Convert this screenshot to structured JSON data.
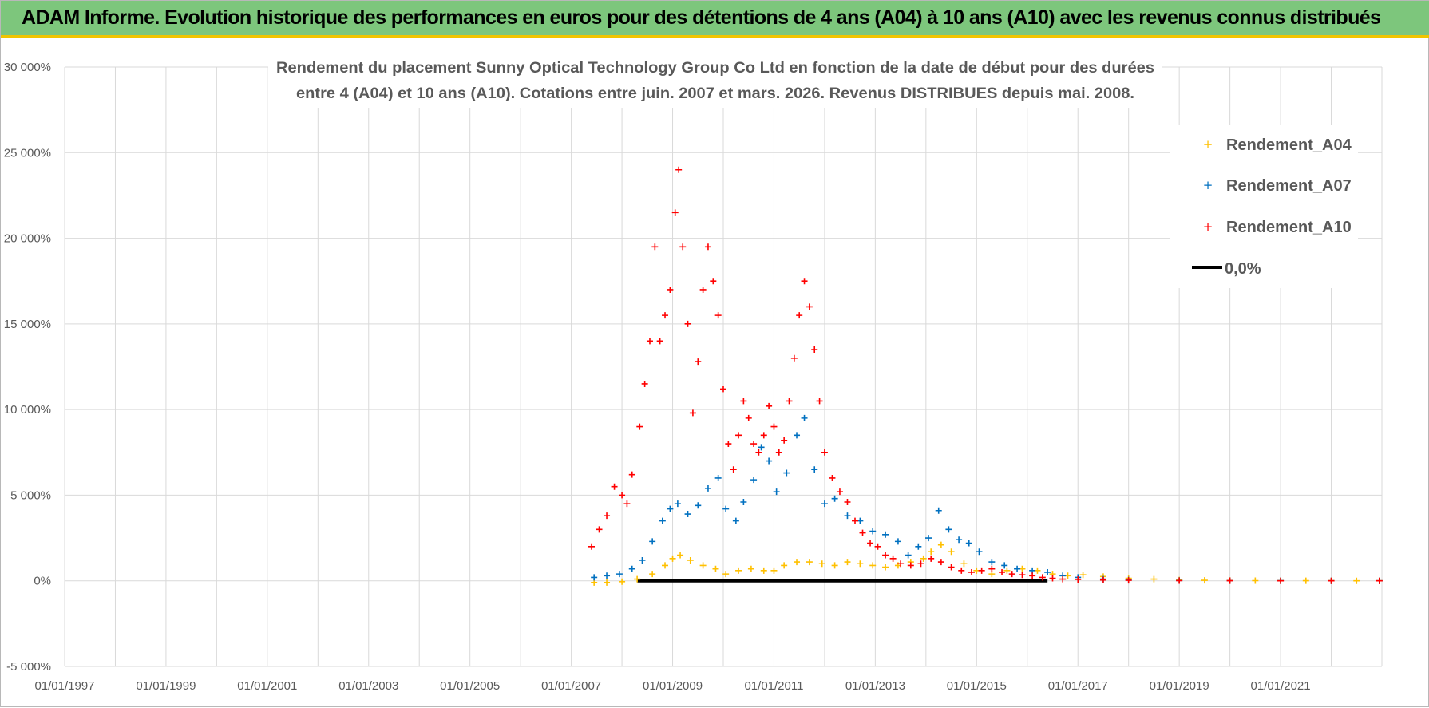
{
  "banner": {
    "title": "ADAM Informe. Evolution historique des performances en euros pour des détentions de 4 ans (A04) à 10 ans (A10) avec les revenus connus distribués"
  },
  "colors": {
    "banner_bg": "#7dc67c",
    "banner_accent": "#f0c400",
    "A04": "#ffc000",
    "A07": "#0070c0",
    "A10": "#ff0000",
    "zero": "#000000",
    "grid": "#d9d9d9"
  },
  "chart_data": {
    "type": "scatter",
    "title_lines": [
      "Rendement du placement Sunny Optical Technology Group Co Ltd en fonction de la date de début pour des durées",
      "entre 4 (A04) et 10 ans (A10).  Cotations entre juin. 2007 et mars. 2026.  Revenus DISTRIBUES depuis mai. 2008."
    ],
    "x_range": [
      1997.0,
      2023.0
    ],
    "x_ticks": [
      {
        "value": 1997,
        "label": "01/01/1997"
      },
      {
        "value": 1999,
        "label": "01/01/1999"
      },
      {
        "value": 2001,
        "label": "01/01/2001"
      },
      {
        "value": 2003,
        "label": "01/01/2003"
      },
      {
        "value": 2005,
        "label": "01/01/2005"
      },
      {
        "value": 2007,
        "label": "01/01/2007"
      },
      {
        "value": 2009,
        "label": "01/01/2009"
      },
      {
        "value": 2011,
        "label": "01/01/2011"
      },
      {
        "value": 2013,
        "label": "01/01/2013"
      },
      {
        "value": 2015,
        "label": "01/01/2015"
      },
      {
        "value": 2017,
        "label": "01/01/2017"
      },
      {
        "value": 2019,
        "label": "01/01/2019"
      },
      {
        "value": 2021,
        "label": "01/01/2021"
      }
    ],
    "y_range": [
      -5000,
      30000
    ],
    "y_ticks": [
      {
        "value": 30000,
        "label": "30 000%"
      },
      {
        "value": 25000,
        "label": "25 000%"
      },
      {
        "value": 20000,
        "label": "20 000%"
      },
      {
        "value": 15000,
        "label": "15 000%"
      },
      {
        "value": 10000,
        "label": "10 000%"
      },
      {
        "value": 5000,
        "label": "5 000%"
      },
      {
        "value": 0,
        "label": "0%"
      },
      {
        "value": -5000,
        "label": "-5 000%"
      }
    ],
    "legend": [
      "Rendement_A04",
      "Rendement_A07",
      "Rendement_A10",
      "0,0%"
    ],
    "series": [
      {
        "name": "Rendement_A04",
        "marker": "+",
        "x": [
          2007.45,
          2007.7,
          2008.0,
          2008.3,
          2008.6,
          2008.85,
          2009.0,
          2009.15,
          2009.35,
          2009.6,
          2009.85,
          2010.05,
          2010.3,
          2010.55,
          2010.8,
          2011.0,
          2011.2,
          2011.45,
          2011.7,
          2011.95,
          2012.2,
          2012.45,
          2012.7,
          2012.95,
          2013.2,
          2013.45,
          2013.7,
          2013.95,
          2014.1,
          2014.3,
          2014.5,
          2014.75,
          2015.0,
          2015.3,
          2015.6,
          2015.9,
          2016.2,
          2016.5,
          2016.8,
          2017.1,
          2017.5,
          2018.0,
          2018.5,
          2019.0,
          2019.5,
          2020.0,
          2020.5,
          2021.0,
          2021.5,
          2022.0,
          2022.5,
          2022.95
        ],
        "y": [
          -100,
          -100,
          -50,
          100,
          400,
          900,
          1300,
          1500,
          1200,
          900,
          700,
          400,
          600,
          700,
          600,
          600,
          900,
          1100,
          1100,
          1000,
          900,
          1100,
          1000,
          900,
          800,
          900,
          1100,
          1300,
          1700,
          2100,
          1700,
          1000,
          600,
          400,
          600,
          700,
          600,
          400,
          300,
          350,
          250,
          150,
          100,
          50,
          30,
          20,
          10,
          10,
          5,
          5,
          0,
          0
        ]
      },
      {
        "name": "Rendement_A07",
        "marker": "+",
        "x": [
          2007.45,
          2007.7,
          2007.95,
          2008.2,
          2008.4,
          2008.6,
          2008.8,
          2008.95,
          2009.1,
          2009.3,
          2009.5,
          2009.7,
          2009.9,
          2010.05,
          2010.25,
          2010.4,
          2010.6,
          2010.75,
          2010.9,
          2011.05,
          2011.25,
          2011.45,
          2011.6,
          2011.8,
          2012.0,
          2012.2,
          2012.45,
          2012.7,
          2012.95,
          2013.2,
          2013.45,
          2013.65,
          2013.85,
          2014.05,
          2014.25,
          2014.45,
          2014.65,
          2014.85,
          2015.05,
          2015.3,
          2015.55,
          2015.8,
          2016.1,
          2016.4,
          2016.7,
          2017.0,
          2017.5,
          2018.0,
          2019.0,
          2020.0,
          2021.0,
          2022.0,
          2022.95
        ],
        "y": [
          200,
          300,
          400,
          700,
          1200,
          2300,
          3500,
          4200,
          4500,
          3900,
          4400,
          5400,
          6000,
          4200,
          3500,
          4600,
          5900,
          7800,
          7000,
          5200,
          6300,
          8500,
          9500,
          6500,
          4500,
          4800,
          3800,
          3500,
          2900,
          2700,
          2300,
          1500,
          2000,
          2500,
          4100,
          3000,
          2400,
          2200,
          1700,
          1100,
          900,
          700,
          600,
          500,
          300,
          200,
          100,
          50,
          20,
          10,
          5,
          0,
          0
        ]
      },
      {
        "name": "Rendement_A10",
        "marker": "+",
        "x": [
          2007.4,
          2007.55,
          2007.7,
          2007.85,
          2008.0,
          2008.1,
          2008.2,
          2008.35,
          2008.45,
          2008.55,
          2008.65,
          2008.75,
          2008.85,
          2008.95,
          2009.05,
          2009.12,
          2009.2,
          2009.3,
          2009.4,
          2009.5,
          2009.6,
          2009.7,
          2009.8,
          2009.9,
          2010.0,
          2010.1,
          2010.2,
          2010.3,
          2010.4,
          2010.5,
          2010.6,
          2010.7,
          2010.8,
          2010.9,
          2011.0,
          2011.1,
          2011.2,
          2011.3,
          2011.4,
          2011.5,
          2011.6,
          2011.7,
          2011.8,
          2011.9,
          2012.0,
          2012.15,
          2012.3,
          2012.45,
          2012.6,
          2012.75,
          2012.9,
          2013.05,
          2013.2,
          2013.35,
          2013.5,
          2013.7,
          2013.9,
          2014.1,
          2014.3,
          2014.5,
          2014.7,
          2014.9,
          2015.1,
          2015.3,
          2015.5,
          2015.7,
          2015.9,
          2016.1,
          2016.3,
          2016.5,
          2016.7,
          2017.0,
          2017.5,
          2018.0,
          2019.0,
          2020.0,
          2021.0,
          2022.0,
          2022.95
        ],
        "y": [
          2000,
          3000,
          3800,
          5500,
          5000,
          4500,
          6200,
          9000,
          11500,
          14000,
          19500,
          14000,
          15500,
          17000,
          21500,
          24000,
          19500,
          15000,
          9800,
          12800,
          17000,
          19500,
          17500,
          15500,
          11200,
          8000,
          6500,
          8500,
          10500,
          9500,
          8000,
          7500,
          8500,
          10200,
          9000,
          7500,
          8200,
          10500,
          13000,
          15500,
          17500,
          16000,
          13500,
          10500,
          7500,
          6000,
          5200,
          4600,
          3500,
          2800,
          2200,
          2000,
          1500,
          1300,
          1000,
          900,
          1000,
          1300,
          1100,
          800,
          600,
          500,
          600,
          700,
          500,
          400,
          350,
          300,
          200,
          150,
          100,
          80,
          50,
          30,
          10,
          5,
          0,
          0,
          0
        ]
      },
      {
        "name": "0,0%",
        "marker": "line",
        "x": [
          2008.3,
          2016.4
        ],
        "y": [
          0,
          0
        ]
      }
    ]
  }
}
